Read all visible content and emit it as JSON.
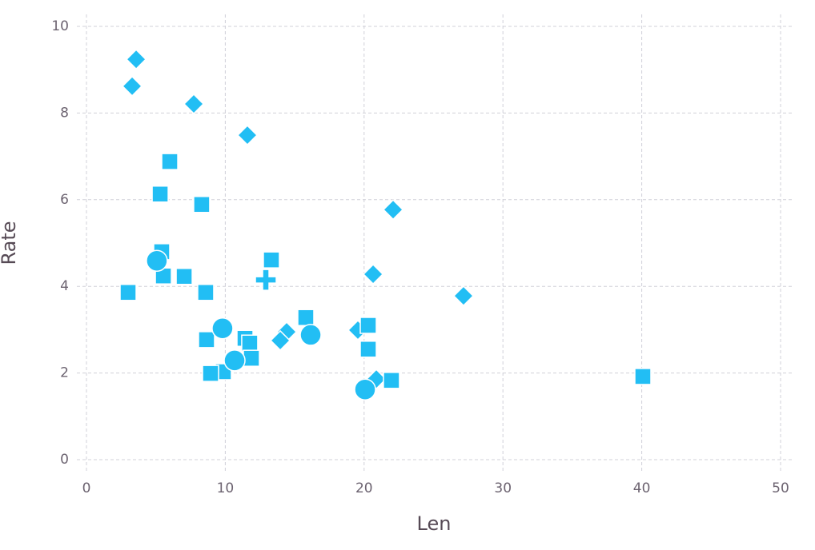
{
  "chart_data": {
    "type": "scatter",
    "x_label": "Len",
    "y_label": "Rate",
    "color": "#22bef4",
    "xlim": [
      0,
      50
    ],
    "ylim": [
      0,
      10
    ],
    "xticks": [
      0,
      10,
      20,
      30,
      40,
      50
    ],
    "yticks": [
      0,
      2,
      4,
      6,
      8,
      10
    ],
    "grid": true,
    "x": [
      3.58,
      3.29,
      7.73,
      11.59,
      22.09,
      20.65,
      27.16,
      14.42,
      13.96,
      19.55,
      20.88,
      6.0,
      5.31,
      8.3,
      5.42,
      5.54,
      7.04,
      8.59,
      3.0,
      13.32,
      15.8,
      8.65,
      11.42,
      11.76,
      11.88,
      9.86,
      8.94,
      20.3,
      20.3,
      21.97,
      40.08,
      5.07,
      9.8,
      10.67,
      16.15,
      20.07,
      12.92
    ],
    "values": [
      9.24,
      8.62,
      8.21,
      7.49,
      5.77,
      4.28,
      3.78,
      2.95,
      2.75,
      2.99,
      1.86,
      6.88,
      6.13,
      5.89,
      4.8,
      4.24,
      4.23,
      3.86,
      3.86,
      4.61,
      3.28,
      2.77,
      2.8,
      2.69,
      2.34,
      2.03,
      1.99,
      2.55,
      3.1,
      1.83,
      1.92,
      4.59,
      3.03,
      2.29,
      2.88,
      1.62,
      4.15
    ],
    "shapes": [
      "diamond",
      "diamond",
      "diamond",
      "diamond",
      "diamond",
      "diamond",
      "diamond",
      "diamond",
      "diamond",
      "diamond",
      "diamond",
      "square",
      "square",
      "square",
      "square",
      "square",
      "square",
      "square",
      "square",
      "square",
      "square",
      "square",
      "square",
      "square",
      "square",
      "square",
      "square",
      "square",
      "square",
      "square",
      "square",
      "circle",
      "circle",
      "circle",
      "circle",
      "circle",
      "cross"
    ]
  }
}
